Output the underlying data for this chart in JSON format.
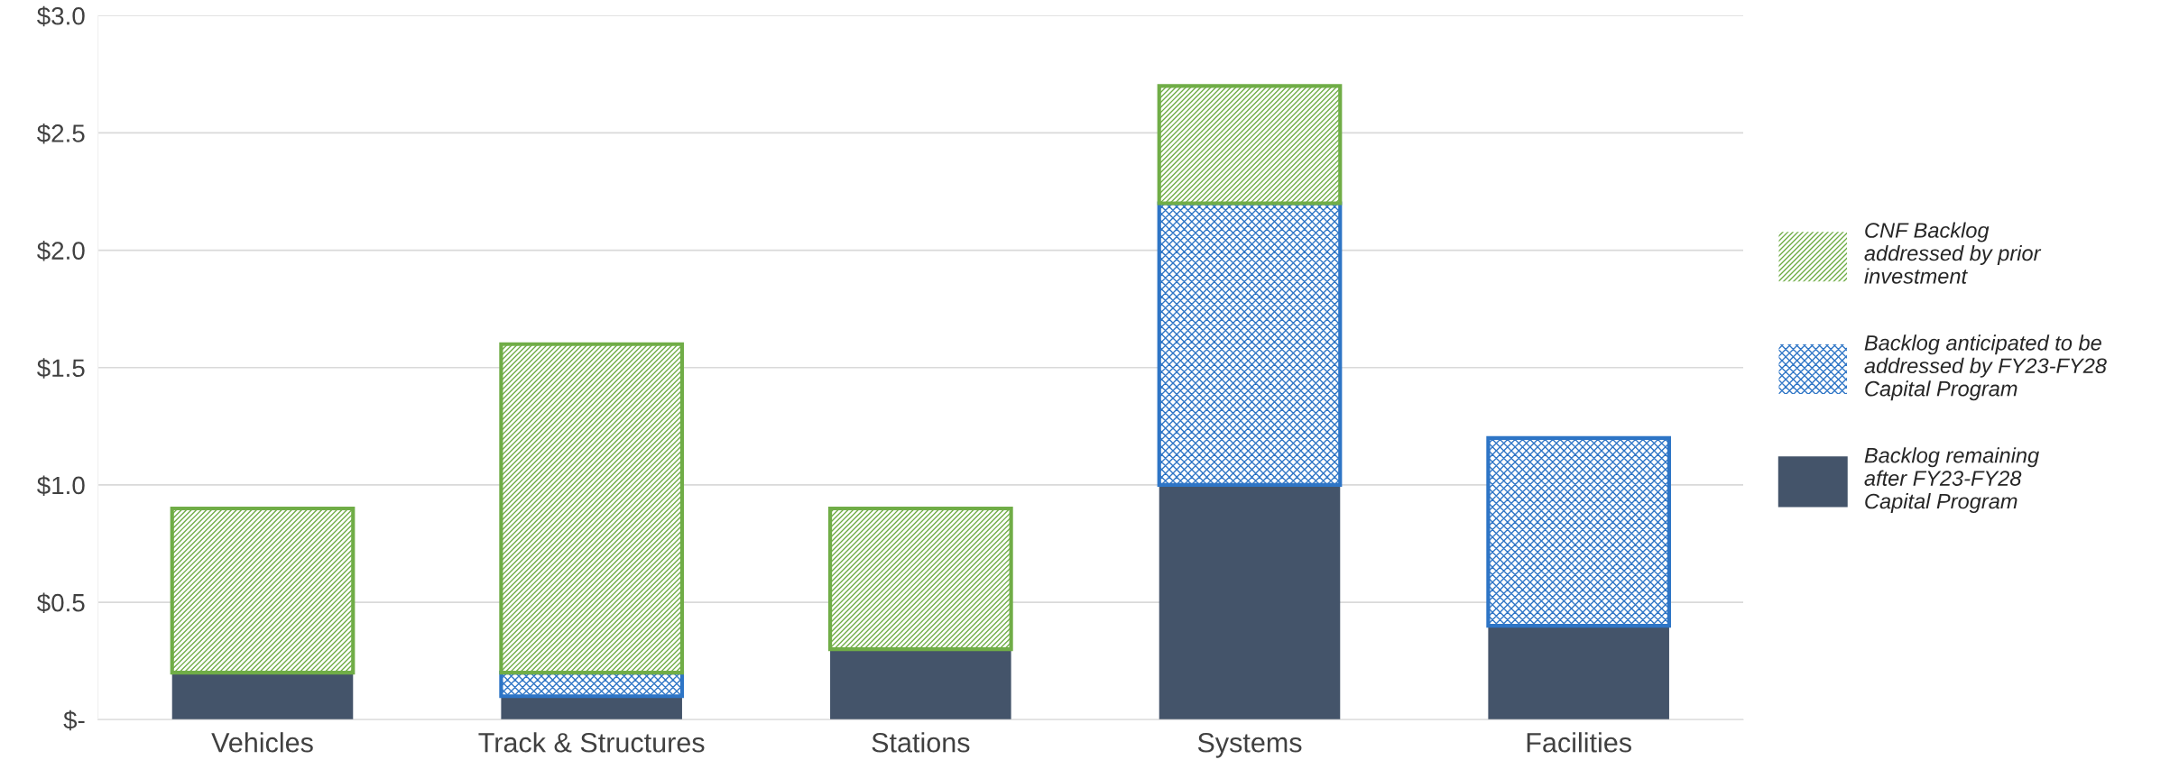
{
  "chart_data": {
    "type": "bar",
    "stacked": true,
    "categories": [
      "Vehicles",
      "Track & Structures",
      "Stations",
      "Systems",
      "Facilities"
    ],
    "series": [
      {
        "name": "Backlog remaining\nafter FY23-FY28\nCapital Program",
        "color": "#44546a",
        "values": [
          0.2,
          0.1,
          0.3,
          1.0,
          0.4
        ]
      },
      {
        "name": "Backlog anticipated to be\naddressed by FY23-FY28\nCapital Program",
        "color": "#2e75c6",
        "values": [
          0,
          0.1,
          0,
          1.2,
          0.8
        ]
      },
      {
        "name": "CNF Backlog\naddressed by prior\ninvestment",
        "color": "#70ad47",
        "values": [
          0.7,
          1.4,
          0.6,
          0.5,
          0
        ]
      }
    ],
    "ylim": [
      0,
      3.0
    ],
    "yticks": [
      {
        "value": 0,
        "label": "$-"
      },
      {
        "value": 0.5,
        "label": "$0.5"
      },
      {
        "value": 1.0,
        "label": "$1.0"
      },
      {
        "value": 1.5,
        "label": "$1.5"
      },
      {
        "value": 2.0,
        "label": "$2.0"
      },
      {
        "value": 2.5,
        "label": "$2.5"
      },
      {
        "value": 3.0,
        "label": "$3.0"
      }
    ],
    "grid": "y",
    "legend": "right"
  }
}
